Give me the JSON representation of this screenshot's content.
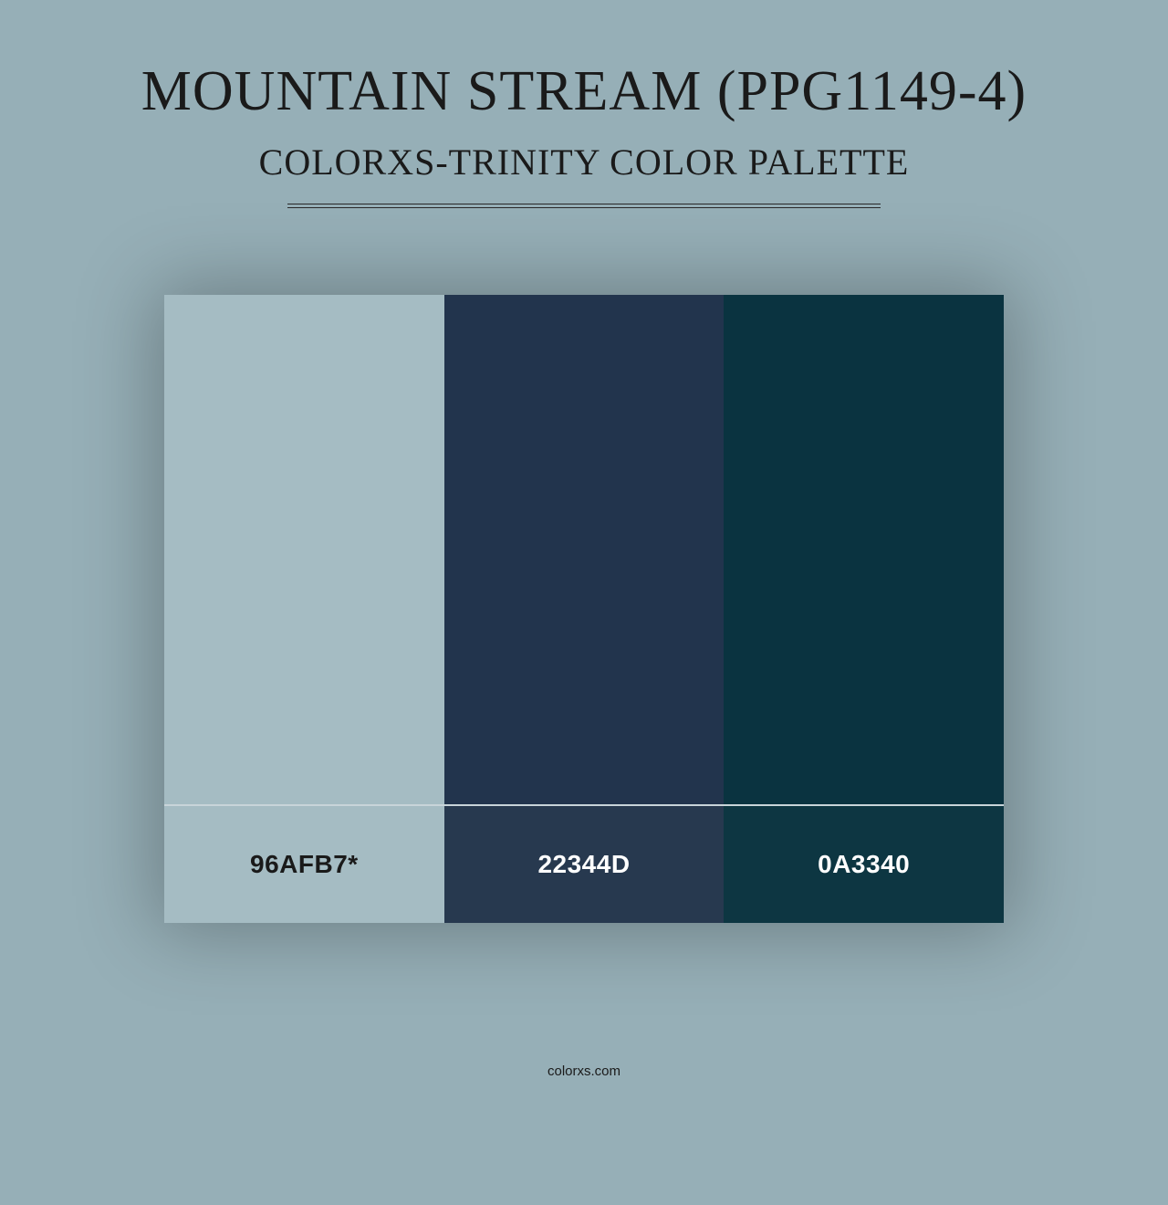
{
  "background_color": "#96afb7",
  "title": {
    "text": "MOUNTAIN STREAM (PPG1149-4)",
    "color": "#1a1a1a",
    "fontsize": 62
  },
  "subtitle": {
    "text": "COLORXS-TRINITY COLOR PALETTE",
    "color": "#1a1a1a",
    "fontsize": 40
  },
  "divider_color": "#2a2a2a",
  "separator_color": "#c8d4d9",
  "palette": {
    "swatches": [
      {
        "label": "96AFB7*",
        "color": "#a5bcc3",
        "label_bg": "#a5bcc3",
        "label_text": "#1a1a1a"
      },
      {
        "label": "22344D",
        "color": "#22344d",
        "label_bg": "#27394f",
        "label_text": "#ffffff"
      },
      {
        "label": "0A3340",
        "color": "#0a3340",
        "label_bg": "#0d3642",
        "label_text": "#ffffff"
      }
    ],
    "shadow_color": "rgba(0,0,0,0.28)"
  },
  "footer": {
    "text": "colorxs.com",
    "color": "#1a1a1a"
  }
}
